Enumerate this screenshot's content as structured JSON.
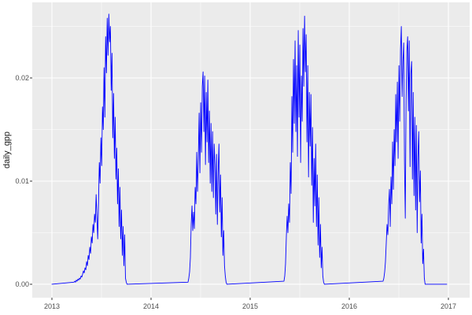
{
  "figure": {
    "background": "#FFFFFF",
    "title": ""
  },
  "chart_data": {
    "type": "line",
    "title": "",
    "xlabel": "",
    "ylabel": "daily_gpp",
    "legend": "none",
    "grid": "major+minor",
    "panel_background": "#EBEBEB",
    "x_domain": [
      2012.8016,
      2017.2143
    ],
    "y_domain": [
      -0.0013,
      0.02733
    ],
    "x_ticks": {
      "values": [
        2013,
        2014,
        2015,
        2016,
        2017
      ],
      "labels": [
        "2013",
        "2014",
        "2015",
        "2016",
        "2017"
      ]
    },
    "x_minor": [
      2013.5,
      2014.5,
      2015.5,
      2016.5
    ],
    "y_ticks": {
      "values": [
        0.0,
        0.01,
        0.02
      ],
      "labels": [
        "0.00",
        "0.01",
        "0.02"
      ]
    },
    "y_minor": [
      0.005,
      0.015,
      0.025
    ],
    "colors": {
      "line": "#0000FF",
      "panel_bg": "#EBEBEB",
      "grid_major": "#FFFFFF",
      "grid_minor": "#FFFFFF",
      "tick_text": "#4D4D4D",
      "tick_mark": "#333333",
      "axis_title": "#1A1A1A"
    },
    "series": [
      {
        "name": "daily_gpp",
        "color": "#0000FF",
        "segments": [
          {
            "t0": 2013.0,
            "dt": 0.008,
            "values": [
              0.0
            ]
          },
          {
            "t0": 2013.222,
            "dt": 0.008,
            "values": [
              0.0002,
              0.0003,
              0.0002,
              0.0004,
              0.0003,
              0.0005,
              0.0004,
              0.0006,
              0.0005,
              0.0008,
              0.0007,
              0.001,
              0.0013,
              0.0011,
              0.0016,
              0.0014,
              0.0022,
              0.0018,
              0.0028,
              0.0024,
              0.0036,
              0.003,
              0.0046,
              0.004,
              0.0058,
              0.005,
              0.0068,
              0.006,
              0.0087,
              0.0066,
              0.0044,
              0.0078,
              0.0118,
              0.0098,
              0.0142,
              0.0115,
              0.0172,
              0.015,
              0.021,
              0.0162,
              0.024,
              0.0205,
              0.0258,
              0.0222,
              0.0262,
              0.0235,
              0.025,
              0.0188,
              0.0224,
              0.0142,
              0.0185,
              0.0122,
              0.0162,
              0.0102,
              0.0132,
              0.0078,
              0.0112,
              0.0056,
              0.0094,
              0.0044,
              0.0072,
              0.0028,
              0.0056,
              0.0018,
              0.0048,
              0.0006,
              0.0002,
              0.0
            ]
          },
          {
            "t0": 2014.373,
            "dt": 0.008,
            "values": [
              0.0002,
              0.0006,
              0.0012,
              0.0026,
              0.0058,
              0.0076,
              0.0052,
              0.007,
              0.0054,
              0.0094,
              0.0078,
              0.0128,
              0.009,
              0.0122,
              0.0166,
              0.0108,
              0.0176,
              0.0128,
              0.0192,
              0.0206,
              0.0148,
              0.0202,
              0.0116,
              0.0186,
              0.0138,
              0.0198,
              0.0118,
              0.0168,
              0.0098,
              0.0156,
              0.009,
              0.0148,
              0.0084,
              0.0136,
              0.0116,
              0.0068,
              0.0126,
              0.0058,
              0.0108,
              0.0136,
              0.007,
              0.0106,
              0.0046,
              0.0084,
              0.0028,
              0.0052,
              0.0018,
              0.0008,
              0.0002,
              0.0
            ]
          },
          {
            "t0": 2015.341,
            "dt": 0.008,
            "values": [
              0.0003,
              0.0008,
              0.002,
              0.0046,
              0.0066,
              0.005,
              0.0078,
              0.006,
              0.0118,
              0.0088,
              0.0182,
              0.0128,
              0.0218,
              0.0156,
              0.0236,
              0.0148,
              0.0212,
              0.0124,
              0.0246,
              0.0162,
              0.0232,
              0.0118,
              0.0202,
              0.0158,
              0.0248,
              0.0192,
              0.026,
              0.0206,
              0.0242,
              0.0138,
              0.0212,
              0.0104,
              0.0186,
              0.0134,
              0.0184,
              0.0096,
              0.0152,
              0.006,
              0.0122,
              0.0076,
              0.0136,
              0.0056,
              0.0106,
              0.0038,
              0.0084,
              0.0026,
              0.0058,
              0.0016,
              0.0036,
              0.0008,
              0.0002,
              0.0
            ]
          },
          {
            "t0": 2016.341,
            "dt": 0.008,
            "values": [
              0.0003,
              0.0006,
              0.0012,
              0.0022,
              0.004,
              0.0058,
              0.0048,
              0.0076,
              0.0092,
              0.0056,
              0.0104,
              0.0078,
              0.0138,
              0.0092,
              0.015,
              0.0115,
              0.0184,
              0.0138,
              0.0196,
              0.0122,
              0.0212,
              0.0158,
              0.0228,
              0.025,
              0.0182,
              0.0216,
              0.0234,
              0.0118,
              0.0064,
              0.0178,
              0.0226,
              0.024,
              0.0168,
              0.0236,
              0.0114,
              0.0204,
              0.0216,
              0.0102,
              0.0186,
              0.0086,
              0.0162,
              0.0072,
              0.0154,
              0.005,
              0.0124,
              0.0148,
              0.008,
              0.011,
              0.004,
              0.0068,
              0.002,
              0.0034,
              0.0006,
              0.0
            ]
          },
          {
            "t0": 2016.984,
            "dt": 0.008,
            "values": [
              0.0
            ]
          }
        ]
      }
    ]
  }
}
